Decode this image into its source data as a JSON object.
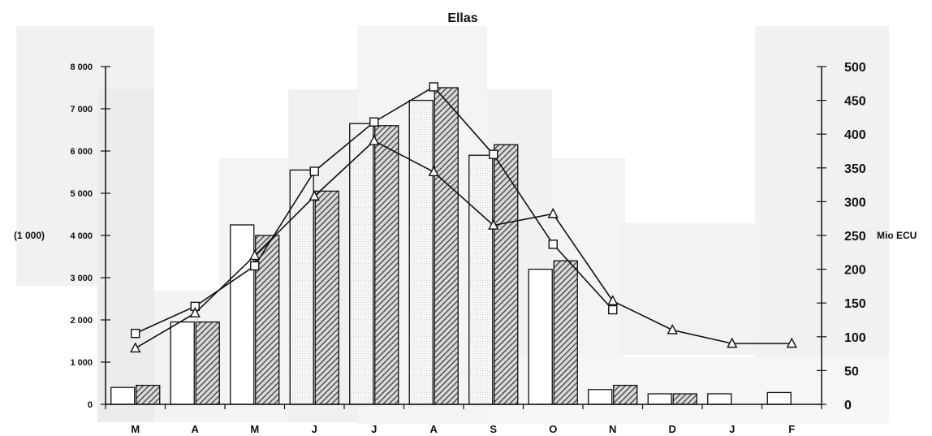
{
  "chart_data": {
    "type": "bar",
    "title": "Ellas",
    "categories": [
      "M",
      "A",
      "M",
      "J",
      "J",
      "A",
      "S",
      "O",
      "N",
      "D",
      "J",
      "F"
    ],
    "left_axis": {
      "label": "(1 000)",
      "range": [
        0,
        8000
      ],
      "ticks": [
        {
          "value": 0,
          "label": "0"
        },
        {
          "value": 1000,
          "label": "1 000"
        },
        {
          "value": 2000,
          "label": "2 000"
        },
        {
          "value": 3000,
          "label": "3 000"
        },
        {
          "value": 4000,
          "label": "4 000"
        },
        {
          "value": 5000,
          "label": "5 000"
        },
        {
          "value": 6000,
          "label": "6 000"
        },
        {
          "value": 7000,
          "label": "7 000"
        },
        {
          "value": 8000,
          "label": "8 000"
        }
      ]
    },
    "right_axis": {
      "label": "Mio ECU",
      "range": [
        0,
        500
      ],
      "ticks": [
        {
          "value": 0,
          "label": "0"
        },
        {
          "value": 50,
          "label": "50"
        },
        {
          "value": 100,
          "label": "100"
        },
        {
          "value": 150,
          "label": "150"
        },
        {
          "value": 200,
          "label": "200"
        },
        {
          "value": 250,
          "label": "250"
        },
        {
          "value": 300,
          "label": "300"
        },
        {
          "value": 350,
          "label": "350"
        },
        {
          "value": 400,
          "label": "400"
        },
        {
          "value": 450,
          "label": "450"
        },
        {
          "value": 500,
          "label": "500"
        }
      ]
    },
    "bar_series": [
      {
        "style": "white",
        "axis": "left",
        "values": [
          400,
          1950,
          4250,
          5550,
          6650,
          7200,
          5900,
          3200,
          350,
          250,
          250,
          280
        ]
      },
      {
        "style": "hatched",
        "axis": "left",
        "values": [
          450,
          1950,
          4000,
          5050,
          6600,
          7500,
          6150,
          3400,
          450,
          250,
          null,
          null
        ]
      }
    ],
    "line_series": [
      {
        "marker": "square",
        "axis": "right",
        "values": [
          105,
          145,
          205,
          345,
          418,
          470,
          370,
          237,
          140,
          null,
          null,
          null
        ]
      },
      {
        "marker": "triangle",
        "axis": "right",
        "values": [
          83,
          135,
          220,
          308,
          390,
          344,
          265,
          282,
          153,
          110,
          90,
          90
        ]
      }
    ],
    "grid": false,
    "colors": {
      "bar_white": "#ffffff",
      "bar_hatched": "#555555",
      "line": "#111111",
      "background_blocks": "#f1f1f1"
    }
  }
}
